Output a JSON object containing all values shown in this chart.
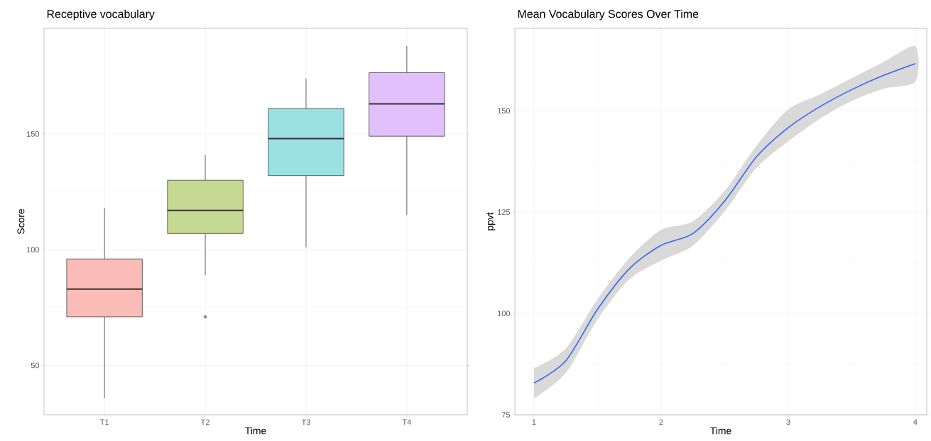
{
  "chart_data": [
    {
      "type": "box",
      "title": "Receptive vocabulary",
      "xlabel": "Time",
      "ylabel": "Score",
      "categories": [
        "T1",
        "T2",
        "T3",
        "T4"
      ],
      "boxes": [
        {
          "low": 36,
          "q1": 71,
          "median": 83,
          "q3": 96,
          "high": 118
        },
        {
          "low": 89,
          "q1": 107,
          "median": 117,
          "q3": 130,
          "high": 141,
          "outliers": [
            71
          ]
        },
        {
          "low": 101,
          "q1": 132,
          "median": 148,
          "q3": 161,
          "high": 174
        },
        {
          "low": 115,
          "q1": 149,
          "median": 163,
          "q3": 176.5,
          "high": 188
        }
      ],
      "colors": [
        "#fbbbb6",
        "#c5d993",
        "#9be0e3",
        "#e2bffd"
      ],
      "ylim": [
        28.7,
        195.6
      ],
      "yticks": [
        50,
        100,
        150
      ],
      "grid": true
    },
    {
      "type": "line",
      "title": "Mean Vocabulary Scores Over Time",
      "xlabel": "Time",
      "ylabel": "ppvt",
      "series": [
        {
          "color": "#3366ff",
          "x": [
            1,
            1.25,
            1.5,
            1.75,
            2,
            2.25,
            2.5,
            2.75,
            3,
            3.25,
            3.5,
            3.75,
            4
          ],
          "values": [
            82.8,
            88.3,
            101,
            111,
            116.8,
            119.7,
            127.7,
            138.6,
            145.8,
            151,
            155.2,
            158.7,
            161.6
          ],
          "lower": [
            79,
            85.3,
            98.5,
            108.4,
            113,
            116.7,
            125.2,
            135.9,
            142.4,
            148,
            152.4,
            155.4,
            157.2
          ],
          "upper": [
            86.5,
            91.3,
            103.5,
            113.6,
            120.6,
            122.7,
            130.2,
            141.3,
            150.3,
            154,
            158,
            162,
            165.9
          ]
        }
      ],
      "xlim": [
        0.85,
        4.09
      ],
      "xticks": [
        1,
        2,
        3,
        4
      ],
      "ylim": [
        75,
        170.3
      ],
      "yticks": [
        75,
        100,
        125,
        150
      ],
      "grid": true
    }
  ]
}
